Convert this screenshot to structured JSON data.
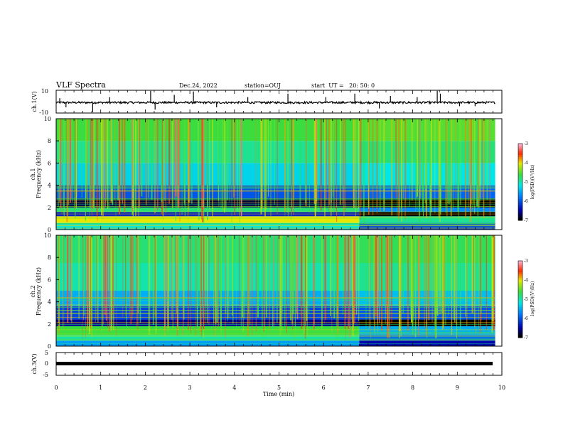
{
  "header": {
    "title": "VLF Spectra",
    "date": "Dec.24, 2022",
    "station": "station=OUJ",
    "start": "start  UT =   20: 50: 0"
  },
  "chart_data": [
    {
      "type": "line",
      "name": "ch1-waveform",
      "ylabel": "ch.1(V)",
      "ylim": [
        -10,
        10
      ],
      "yticks": [
        "10",
        "-10"
      ],
      "xlim": [
        0,
        10
      ],
      "baseline_v": -0.8,
      "noise_v": 0.9,
      "spikes": [
        {
          "t": 0.08,
          "v": 3
        },
        {
          "t": 0.22,
          "v": -5
        },
        {
          "t": 0.82,
          "v": -9
        },
        {
          "t": 1.2,
          "v": 4
        },
        {
          "t": 2.12,
          "v": 9.5
        },
        {
          "t": 2.22,
          "v": -7
        },
        {
          "t": 2.65,
          "v": 6
        },
        {
          "t": 3.08,
          "v": 9
        },
        {
          "t": 3.6,
          "v": -5
        },
        {
          "t": 4.3,
          "v": 4
        },
        {
          "t": 5.2,
          "v": 7
        },
        {
          "t": 6.05,
          "v": 4
        },
        {
          "t": 6.7,
          "v": 7
        },
        {
          "t": 7.25,
          "v": -6
        },
        {
          "t": 7.5,
          "v": 5
        },
        {
          "t": 8.1,
          "v": 4
        },
        {
          "t": 8.55,
          "v": 9.5
        },
        {
          "t": 8.62,
          "v": 7
        },
        {
          "t": 9.05,
          "v": -4
        },
        {
          "t": 9.4,
          "v": -4
        }
      ]
    },
    {
      "type": "heatmap",
      "name": "ch1-spectrogram",
      "ylabel": "Frequency (kHz)",
      "channel_label": "ch.1",
      "ylim": [
        0,
        10
      ],
      "yticks": [
        "0",
        "2",
        "4",
        "6",
        "8",
        "10"
      ],
      "xlim": [
        0,
        9.85
      ],
      "colorbar": {
        "label": "log(PSD)(V²/Hz)",
        "range": [
          -7,
          -3
        ],
        "ticks": [
          "-3",
          "-4",
          "-5",
          "-6",
          "-7"
        ]
      },
      "break_time": 6.8,
      "bands": [
        {
          "f0": 0.0,
          "f1": 0.6,
          "level": -5.2
        },
        {
          "f0": 0.6,
          "f1": 1.2,
          "level": -4.0
        },
        {
          "f0": 1.2,
          "f1": 1.6,
          "level": -6.3
        },
        {
          "f0": 1.6,
          "f1": 2.0,
          "level": -4.8
        },
        {
          "f0": 2.0,
          "f1": 2.8,
          "level": -6.8
        },
        {
          "f0": 2.8,
          "f1": 4.0,
          "level": -6.0
        },
        {
          "f0": 4.0,
          "f1": 6.0,
          "level": -5.3
        },
        {
          "f0": 6.0,
          "f1": 8.0,
          "level": -4.9
        },
        {
          "f0": 8.0,
          "f1": 10.0,
          "level": -4.6
        }
      ]
    },
    {
      "type": "heatmap",
      "name": "ch2-spectrogram",
      "ylabel": "Frequency (kHz)",
      "channel_label": "ch.2",
      "ylim": [
        0,
        10
      ],
      "yticks": [
        "0",
        "2",
        "4",
        "6",
        "8",
        "10"
      ],
      "xlim": [
        0,
        9.85
      ],
      "colorbar": {
        "label": "log(PSD)(V²/Hz)",
        "range": [
          -7,
          -3
        ],
        "ticks": [
          "-3",
          "-4",
          "-5",
          "-6",
          "-7"
        ]
      },
      "break_time": 6.8,
      "bands": [
        {
          "f0": 0.0,
          "f1": 0.5,
          "level": -5.6
        },
        {
          "f0": 0.5,
          "f1": 1.0,
          "level": -5.0
        },
        {
          "f0": 1.0,
          "f1": 1.8,
          "level": -4.6
        },
        {
          "f0": 1.8,
          "f1": 2.4,
          "level": -6.6
        },
        {
          "f0": 2.4,
          "f1": 3.6,
          "level": -6.1
        },
        {
          "f0": 3.6,
          "f1": 5.0,
          "level": -5.5
        },
        {
          "f0": 5.0,
          "f1": 7.5,
          "level": -5.0
        },
        {
          "f0": 7.5,
          "f1": 10.0,
          "level": -4.8
        }
      ]
    },
    {
      "type": "line",
      "name": "ch3-waveform",
      "ylabel": "ch.3(V)",
      "ylim": [
        -5,
        5
      ],
      "yticks": [
        "5",
        "0",
        "-5"
      ],
      "xlim": [
        0,
        9.85
      ],
      "value_v": 0
    }
  ],
  "xaxis": {
    "label": "Time (min)",
    "range": [
      0,
      10
    ],
    "ticks": [
      "0",
      "1",
      "2",
      "3",
      "4",
      "5",
      "6",
      "7",
      "8",
      "9",
      "10"
    ]
  }
}
